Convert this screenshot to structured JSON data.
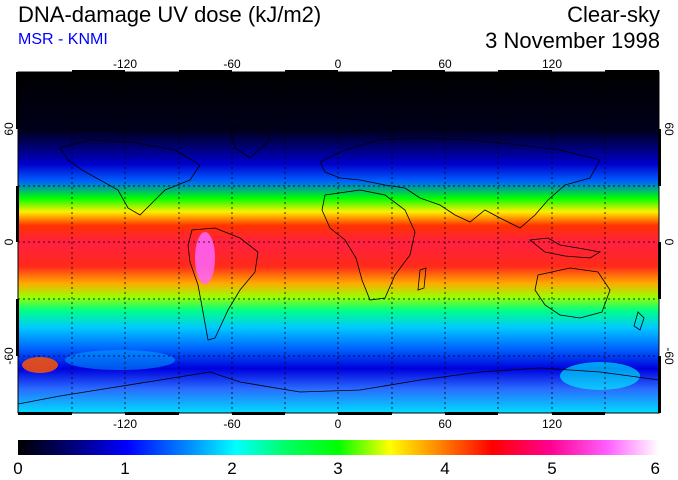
{
  "header": {
    "title": "DNA-damage UV dose (kJ/m2)",
    "subtitle": "MSR - KNMI",
    "condition": "Clear-sky",
    "date": "3 November 1998"
  },
  "colors": {
    "subtitle": "#0000ff",
    "frame": "#000000",
    "grid": "#000000"
  },
  "map": {
    "projection": "equirectangular",
    "lon_range": [
      -180,
      180
    ],
    "lat_range": [
      -90,
      90
    ],
    "lon_ticks": [
      "-120",
      "-60",
      "0",
      "60",
      "120"
    ],
    "lat_ticks": [
      "60",
      "0",
      "-60"
    ],
    "grid_lines": "dotted every 30 degrees"
  },
  "colorbar": {
    "min": 0,
    "max": 6,
    "labels": [
      "0",
      "1",
      "2",
      "3",
      "4",
      "5",
      "6"
    ]
  }
}
